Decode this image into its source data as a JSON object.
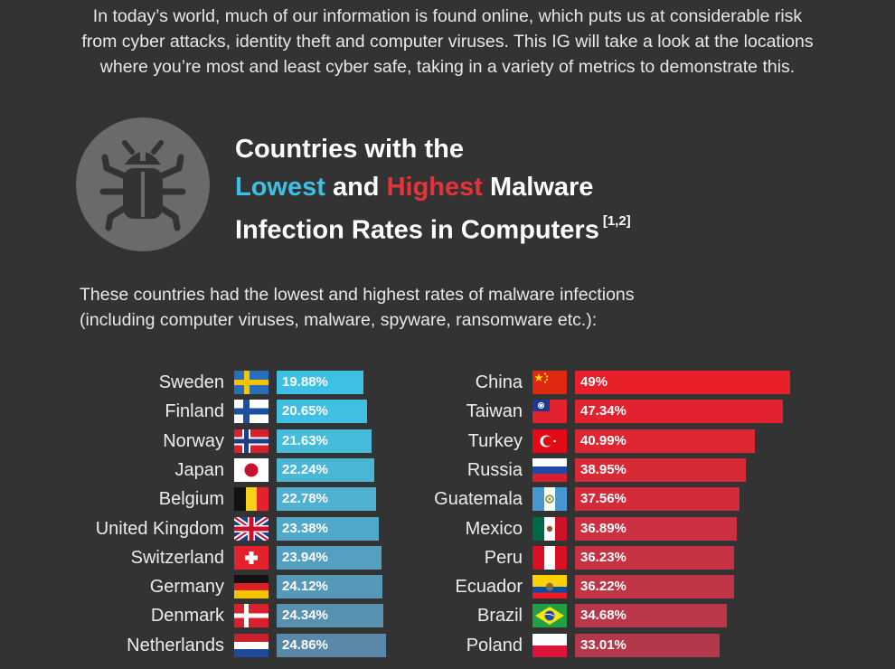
{
  "intro": {
    "line1": "In today’s world, much of our information is found online, which puts us at considerable risk",
    "line2": "from cyber attacks, identity theft and computer viruses. This IG will take a look at the locations",
    "line3": "where you’re most and least cyber safe, taking in a variety of metrics to demonstrate this."
  },
  "header": {
    "icon": "bug-icon",
    "title_line1": "Countries with the",
    "title_lowest": "Lowest",
    "title_and": " and ",
    "title_highest": "Highest",
    "title_malware": " Malware",
    "title_line3": "Infection Rates in Computers",
    "title_ref": "[1,2]"
  },
  "subtitle": {
    "line1": "These countries had the lowest and highest rates of malware infections",
    "line2": "(including computer viruses, malware, spyware, ransomware etc.):"
  },
  "colors": {
    "lowest_accent": "#3cc0e4",
    "highest_accent": "#e8323a",
    "background": "#333333"
  },
  "chart_data": [
    {
      "type": "bar",
      "orientation": "horizontal",
      "name": "Lowest",
      "categories": [
        "Sweden",
        "Finland",
        "Norway",
        "Japan",
        "Belgium",
        "United Kingdom",
        "Switzerland",
        "Germany",
        "Denmark",
        "Netherlands"
      ],
      "values": [
        19.88,
        20.65,
        21.63,
        22.24,
        22.78,
        23.38,
        23.94,
        24.12,
        24.34,
        24.86
      ],
      "labels": [
        "19.88%",
        "20.65%",
        "21.63%",
        "22.24%",
        "22.78%",
        "23.38%",
        "23.94%",
        "24.12%",
        "24.34%",
        "24.86%"
      ],
      "flags": [
        "sweden-flag-icon",
        "finland-flag-icon",
        "norway-flag-icon",
        "japan-flag-icon",
        "belgium-flag-icon",
        "uk-flag-icon",
        "switzerland-flag-icon",
        "germany-flag-icon",
        "denmark-flag-icon",
        "netherlands-flag-icon"
      ],
      "colors": [
        "#3cc1e4",
        "#41bfe1",
        "#46bbdc",
        "#4ab6d6",
        "#4fb0d0",
        "#52a8c8",
        "#54a0c0",
        "#5698b8",
        "#5890b0",
        "#5a88a8"
      ]
    },
    {
      "type": "bar",
      "orientation": "horizontal",
      "name": "Highest",
      "categories": [
        "China",
        "Taiwan",
        "Turkey",
        "Russia",
        "Guatemala",
        "Mexico",
        "Peru",
        "Ecuador",
        "Brazil",
        "Poland"
      ],
      "values": [
        49,
        47.34,
        40.99,
        38.95,
        37.56,
        36.89,
        36.23,
        36.22,
        34.68,
        33.01
      ],
      "labels": [
        "49%",
        "47.34%",
        "40.99%",
        "38.95%",
        "37.56%",
        "36.89%",
        "36.23%",
        "36.22%",
        "34.68%",
        "33.01%"
      ],
      "flags": [
        "china-flag-icon",
        "taiwan-flag-icon",
        "turkey-flag-icon",
        "russia-flag-icon",
        "guatemala-flag-icon",
        "mexico-flag-icon",
        "peru-flag-icon",
        "ecuador-flag-icon",
        "brazil-flag-icon",
        "poland-flag-icon"
      ],
      "colors": [
        "#e8202a",
        "#e3222f",
        "#de2633",
        "#d82937",
        "#d22c3b",
        "#cc2f3f",
        "#c63243",
        "#c03446",
        "#ba3649",
        "#b4384c"
      ]
    }
  ]
}
